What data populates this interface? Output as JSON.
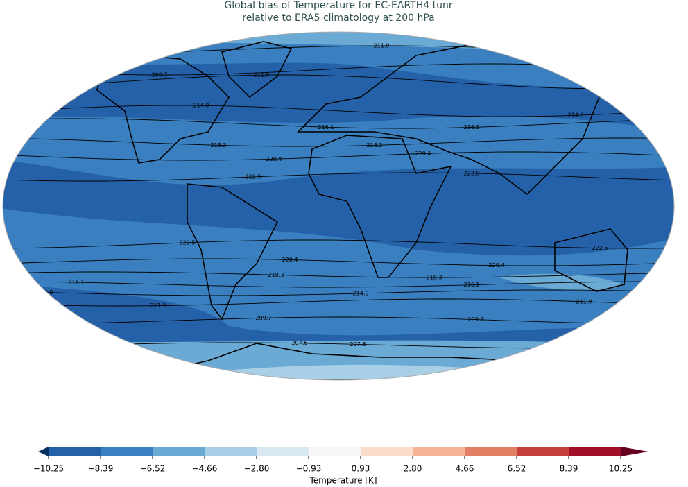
{
  "chart_data": {
    "type": "map",
    "title": [
      "Global bias of Temperature for EC-EARTH4 tunr",
      "relative to ERA5 climatology at 200 hPa"
    ],
    "contour_levels": [
      207.6,
      209.7,
      211.9,
      {
        "value": 214,
        "label": "214.0"
      },
      216.1,
      218.3,
      220.4,
      222.5
    ],
    "colorbar": {
      "label": "Temperature [K]",
      "ticks": [
        {
          "value": -10.25,
          "label": "−10.25"
        },
        {
          "value": -8.39,
          "label": "−8.39"
        },
        {
          "value": -6.52,
          "label": "−6.52"
        },
        {
          "value": -4.66,
          "label": "−4.66"
        },
        {
          "value": -2.8,
          "label": "−2.80"
        },
        {
          "value": -0.93,
          "label": "−0.93"
        },
        0.93,
        {
          "value": 2.8,
          "label": "2.80"
        },
        4.66,
        6.52,
        8.39,
        10.25
      ],
      "colors": [
        "#2561a9",
        "#3a7fbf",
        "#6aaad4",
        "#a8cfe5",
        "#d8e8f1",
        "#f7f7f7",
        "#fbdccb",
        "#f4b495",
        "#e07f63",
        "#c4403e",
        "#a10e27"
      ],
      "under_color": "#053061",
      "over_color": "#67001f"
    }
  }
}
